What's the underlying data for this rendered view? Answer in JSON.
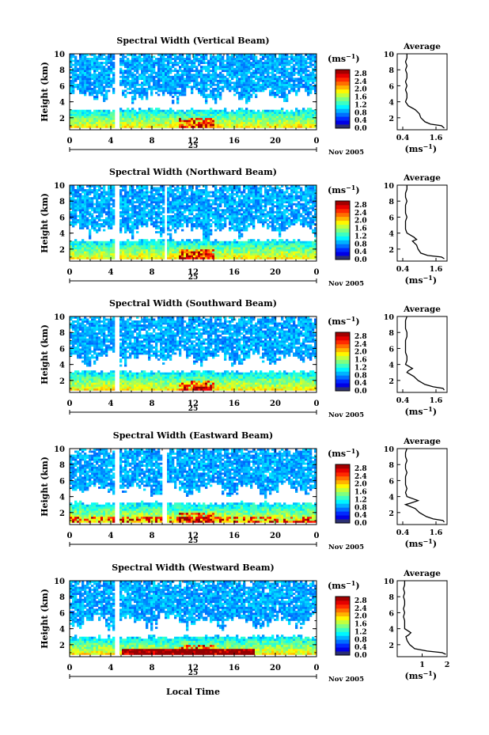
{
  "chart_data": [
    {
      "type": "heatmap",
      "title": "Spectral Width (Vertical Beam)",
      "ylabel": "Height (km)",
      "xticks": [
        "0",
        "4",
        "8",
        "12",
        "16",
        "20",
        "0"
      ],
      "yticks": [
        "2",
        "4",
        "6",
        "8",
        "10"
      ],
      "xlim": [
        0,
        24
      ],
      "ylim": [
        0.5,
        10
      ],
      "date_day": "25",
      "date_label": "Nov 2005",
      "colorbar": {
        "unit": "(ms-1)",
        "ticks": [
          "0.0",
          "0.4",
          "0.8",
          "1.2",
          "1.6",
          "2.0",
          "2.4",
          "2.8"
        ],
        "range": [
          0,
          3.0
        ]
      },
      "gaps_hours": [
        [
          4.3,
          4.9
        ]
      ],
      "lower_layer_km": [
        0.8,
        3.2
      ],
      "upper_layer_km": [
        4.2,
        10.0
      ],
      "average": {
        "title": "Average",
        "xlabel": "(ms-1)",
        "xticks": [
          "0.4",
          "1.6"
        ],
        "xlim": [
          0.2,
          2.0
        ],
        "profile": [
          [
            10,
            0.55
          ],
          [
            9.5,
            0.55
          ],
          [
            9,
            0.5
          ],
          [
            8.5,
            0.55
          ],
          [
            8,
            0.5
          ],
          [
            7.5,
            0.55
          ],
          [
            7,
            0.55
          ],
          [
            6.5,
            0.5
          ],
          [
            6,
            0.55
          ],
          [
            5.5,
            0.5
          ],
          [
            5,
            0.55
          ],
          [
            4.5,
            0.55
          ],
          [
            4,
            0.5
          ],
          [
            3.5,
            0.6
          ],
          [
            3,
            0.85
          ],
          [
            2.5,
            1.0
          ],
          [
            2,
            1.05
          ],
          [
            1.5,
            1.2
          ],
          [
            1.2,
            1.4
          ],
          [
            1,
            1.8
          ],
          [
            0.7,
            1.9
          ]
        ]
      }
    },
    {
      "type": "heatmap",
      "title": "Spectral Width (Northward Beam)",
      "ylabel": "Height (km)",
      "xticks": [
        "0",
        "4",
        "8",
        "12",
        "16",
        "20",
        "0"
      ],
      "yticks": [
        "2",
        "4",
        "6",
        "8",
        "10"
      ],
      "xlim": [
        0,
        24
      ],
      "ylim": [
        0.5,
        10
      ],
      "date_day": "25",
      "date_label": "Nov 2005",
      "colorbar": {
        "unit": "(ms-1)",
        "ticks": [
          "0.0",
          "0.4",
          "0.8",
          "1.2",
          "1.6",
          "2.0",
          "2.4",
          "2.8"
        ],
        "range": [
          0,
          3.0
        ]
      },
      "gaps_hours": [
        [
          4.4,
          4.8
        ],
        [
          9.2,
          9.4
        ]
      ],
      "lower_layer_km": [
        0.8,
        3.3
      ],
      "upper_layer_km": [
        3.8,
        10.0
      ],
      "average": {
        "title": "Average",
        "xlabel": "(ms-1)",
        "xticks": [
          "0.4",
          "1.6"
        ],
        "xlim": [
          0.2,
          2.0
        ],
        "profile": [
          [
            10,
            0.55
          ],
          [
            9.5,
            0.55
          ],
          [
            9,
            0.5
          ],
          [
            8.5,
            0.5
          ],
          [
            8,
            0.55
          ],
          [
            7.5,
            0.5
          ],
          [
            7,
            0.5
          ],
          [
            6.5,
            0.5
          ],
          [
            6,
            0.55
          ],
          [
            5.5,
            0.5
          ],
          [
            5,
            0.5
          ],
          [
            4.5,
            0.5
          ],
          [
            4,
            0.55
          ],
          [
            3.5,
            0.8
          ],
          [
            3.2,
            0.9
          ],
          [
            3,
            0.75
          ],
          [
            2.5,
            0.9
          ],
          [
            2,
            0.95
          ],
          [
            1.5,
            1.05
          ],
          [
            1.2,
            1.3
          ],
          [
            1,
            1.8
          ],
          [
            0.8,
            1.9
          ]
        ]
      }
    },
    {
      "type": "heatmap",
      "title": "Spectral Width (Southward Beam)",
      "ylabel": "Height (km)",
      "xticks": [
        "0",
        "4",
        "8",
        "12",
        "16",
        "20",
        "0"
      ],
      "yticks": [
        "2",
        "4",
        "6",
        "8",
        "10"
      ],
      "xlim": [
        0,
        24
      ],
      "ylim": [
        0.5,
        10
      ],
      "date_day": "25",
      "date_label": "Nov 2005",
      "colorbar": {
        "unit": "(ms-1)",
        "ticks": [
          "0.0",
          "0.4",
          "0.8",
          "1.2",
          "1.6",
          "2.0",
          "2.4",
          "2.8"
        ],
        "range": [
          0,
          3.0
        ]
      },
      "gaps_hours": [
        [
          4.3,
          4.9
        ]
      ],
      "lower_layer_km": [
        0.8,
        3.3
      ],
      "upper_layer_km": [
        4.2,
        10.0
      ],
      "average": {
        "title": "Average",
        "xlabel": "(ms-1)",
        "xticks": [
          "0.4",
          "1.6"
        ],
        "xlim": [
          0.2,
          2.0
        ],
        "profile": [
          [
            10,
            0.55
          ],
          [
            9.5,
            0.5
          ],
          [
            9,
            0.5
          ],
          [
            8.5,
            0.5
          ],
          [
            8,
            0.55
          ],
          [
            7.5,
            0.55
          ],
          [
            7,
            0.5
          ],
          [
            6.5,
            0.5
          ],
          [
            6,
            0.5
          ],
          [
            5.5,
            0.5
          ],
          [
            5,
            0.55
          ],
          [
            4.5,
            0.55
          ],
          [
            4,
            0.5
          ],
          [
            3.5,
            0.75
          ],
          [
            3.2,
            0.6
          ],
          [
            3,
            0.55
          ],
          [
            2.5,
            0.8
          ],
          [
            2,
            0.95
          ],
          [
            1.5,
            1.2
          ],
          [
            1.2,
            1.5
          ],
          [
            1,
            1.85
          ],
          [
            0.8,
            1.9
          ]
        ]
      }
    },
    {
      "type": "heatmap",
      "title": "Spectral Width (Eastward Beam)",
      "ylabel": "Height (km)",
      "xticks": [
        "0",
        "4",
        "8",
        "12",
        "16",
        "20",
        "0"
      ],
      "yticks": [
        "2",
        "4",
        "6",
        "8",
        "10"
      ],
      "xlim": [
        0,
        24
      ],
      "ylim": [
        0.5,
        10
      ],
      "date_day": "25",
      "date_label": "Nov 2005",
      "colorbar": {
        "unit": "(ms-1)",
        "ticks": [
          "0.0",
          "0.4",
          "0.8",
          "1.2",
          "1.6",
          "2.0",
          "2.4",
          "2.8"
        ],
        "range": [
          0,
          3.0
        ]
      },
      "gaps_hours": [
        [
          4.4,
          4.8
        ],
        [
          9.1,
          9.4
        ]
      ],
      "lower_layer_km": [
        0.8,
        3.4
      ],
      "upper_layer_km": [
        4.3,
        10.0
      ],
      "average": {
        "title": "Average",
        "xlabel": "(ms-1)",
        "xticks": [
          "0.4",
          "1.6"
        ],
        "xlim": [
          0.2,
          2.0
        ],
        "profile": [
          [
            10,
            0.55
          ],
          [
            9.5,
            0.5
          ],
          [
            9,
            0.5
          ],
          [
            8.5,
            0.55
          ],
          [
            8,
            0.5
          ],
          [
            7.5,
            0.5
          ],
          [
            7,
            0.55
          ],
          [
            6.5,
            0.5
          ],
          [
            6,
            0.5
          ],
          [
            5.5,
            0.5
          ],
          [
            5,
            0.55
          ],
          [
            4.5,
            0.5
          ],
          [
            4,
            0.55
          ],
          [
            3.5,
            0.95
          ],
          [
            3.2,
            0.7
          ],
          [
            3,
            0.5
          ],
          [
            2.5,
            0.85
          ],
          [
            2,
            1.0
          ],
          [
            1.5,
            1.25
          ],
          [
            1.2,
            1.5
          ],
          [
            1,
            1.85
          ],
          [
            0.8,
            1.9
          ]
        ]
      }
    },
    {
      "type": "heatmap",
      "title": "Spectral Width (Westward Beam)",
      "ylabel": "Height (km)",
      "xticks": [
        "0",
        "4",
        "8",
        "12",
        "16",
        "20",
        "0"
      ],
      "yticks": [
        "2",
        "4",
        "6",
        "8",
        "10"
      ],
      "xlim": [
        0,
        24
      ],
      "ylim": [
        0.5,
        10
      ],
      "date_day": "25",
      "date_label": "Nov 2005",
      "xlabel": "Local Time",
      "colorbar": {
        "unit": "(ms-1)",
        "ticks": [
          "0.0",
          "0.4",
          "0.8",
          "1.2",
          "1.6",
          "2.0",
          "2.4",
          "2.8"
        ],
        "range": [
          0,
          3.0
        ]
      },
      "gaps_hours": [
        [
          4.3,
          4.8
        ]
      ],
      "lower_layer_km": [
        0.8,
        3.2
      ],
      "upper_layer_km": [
        4.3,
        10.0
      ],
      "average": {
        "title": "Average",
        "xlabel": "(ms-1)",
        "xticks": [
          "1",
          "2"
        ],
        "xlim": [
          0,
          2.0
        ],
        "profile": [
          [
            10,
            0.3
          ],
          [
            9.5,
            0.3
          ],
          [
            9,
            0.25
          ],
          [
            8.5,
            0.3
          ],
          [
            8,
            0.25
          ],
          [
            7.5,
            0.3
          ],
          [
            7,
            0.3
          ],
          [
            6.5,
            0.25
          ],
          [
            6,
            0.3
          ],
          [
            5.5,
            0.25
          ],
          [
            5,
            0.3
          ],
          [
            4.5,
            0.3
          ],
          [
            4,
            0.3
          ],
          [
            3.5,
            0.55
          ],
          [
            3.2,
            0.45
          ],
          [
            3,
            0.35
          ],
          [
            2.5,
            0.4
          ],
          [
            2,
            0.5
          ],
          [
            1.5,
            0.7
          ],
          [
            1.2,
            1.2
          ],
          [
            1,
            1.8
          ],
          [
            0.8,
            1.95
          ]
        ]
      }
    }
  ]
}
